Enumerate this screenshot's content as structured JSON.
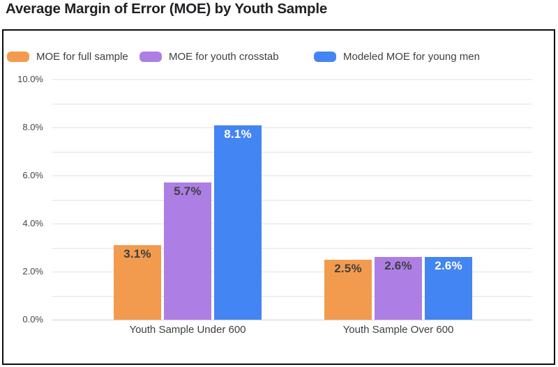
{
  "title": "Average Margin of Error (MOE) by Youth Sample",
  "chart_data": {
    "type": "bar",
    "title": "Average Margin of Error (MOE) by Youth Sample",
    "categories": [
      "Youth Sample Under 600",
      "Youth Sample Over 600"
    ],
    "series": [
      {
        "name": "MOE for full sample",
        "color": "#F29B4F",
        "label_color": "#3F3F3F",
        "values": [
          3.1,
          2.5
        ],
        "labels": [
          "3.1%",
          "2.5%"
        ]
      },
      {
        "name": "MOE for youth crosstab",
        "color": "#AD7EE4",
        "label_color": "#3F3F3F",
        "values": [
          5.7,
          2.6
        ],
        "labels": [
          "5.7%",
          "2.6%"
        ]
      },
      {
        "name": "Modeled MOE for young men",
        "color": "#4385F2",
        "label_color": "#FFFFFF",
        "values": [
          8.1,
          2.6
        ],
        "labels": [
          "8.1%",
          "2.6%"
        ]
      }
    ],
    "ylim": [
      0,
      10
    ],
    "y_ticks": [
      "10.0%",
      "8.0%",
      "6.0%",
      "4.0%",
      "2.0%",
      "0.0%"
    ],
    "y_tick_values": [
      10,
      8,
      6,
      4,
      2,
      0
    ],
    "minor_grid_interval": 1,
    "grid": true,
    "legend_position": "top-left",
    "colors": {
      "gridline": "#E2E2E2",
      "baseline": "#CFCFCF",
      "axis_text": "#464646",
      "category_text": "#3C4043",
      "title_text": "#202124",
      "frame_border": "#0A0A0A"
    }
  }
}
